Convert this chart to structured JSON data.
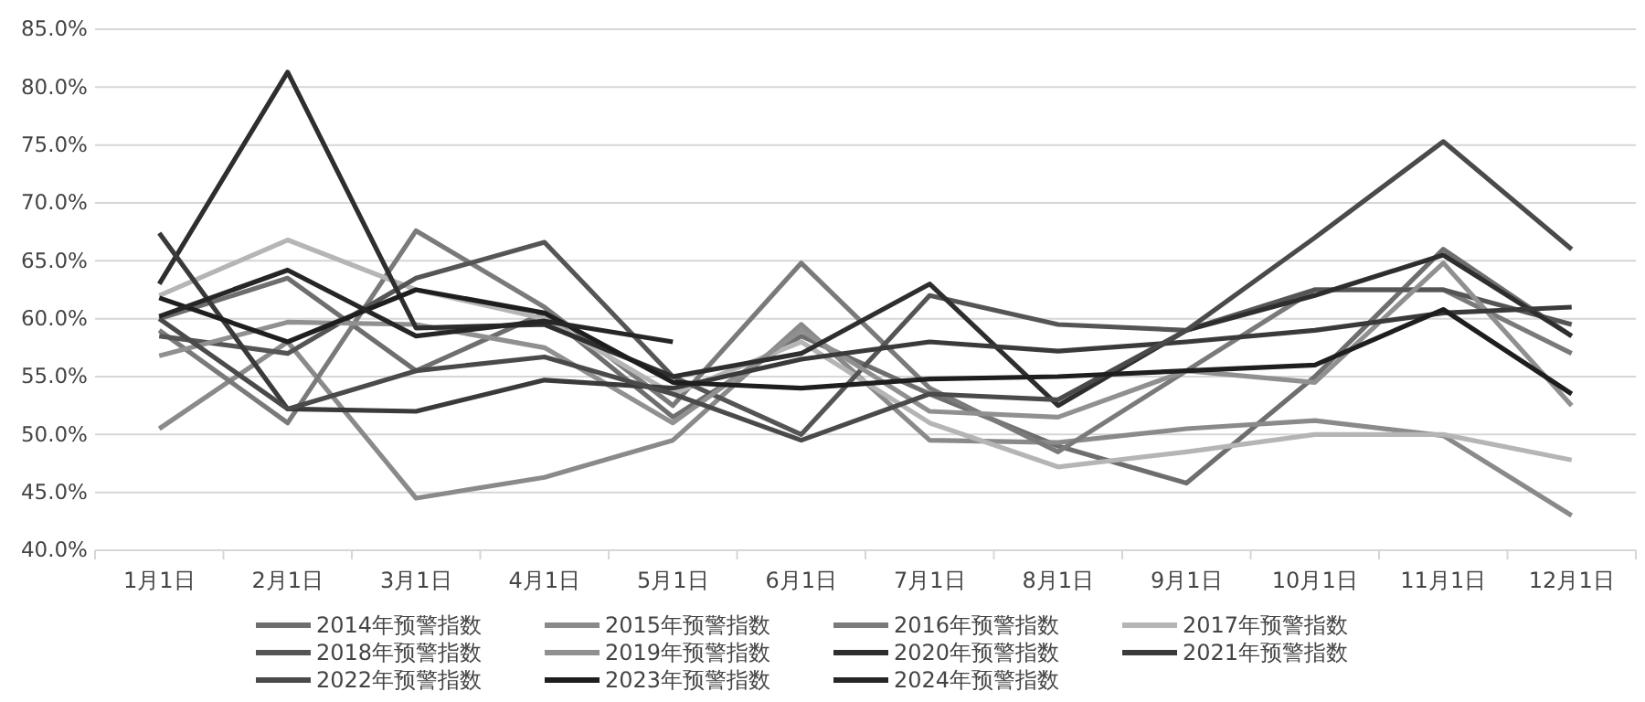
{
  "chart_data": {
    "type": "line",
    "categories": [
      "1月1日",
      "2月1日",
      "3月1日",
      "4月1日",
      "5月1日",
      "6月1日",
      "7月1日",
      "8月1日",
      "9月1日",
      "10月1日",
      "11月1日",
      "12月1日"
    ],
    "ylim": [
      40,
      85
    ],
    "yticks": [
      {
        "value": 40,
        "label": "40.0%"
      },
      {
        "value": 45,
        "label": "45.0%"
      },
      {
        "value": 50,
        "label": "50.0%"
      },
      {
        "value": 55,
        "label": "55.0%"
      },
      {
        "value": 60,
        "label": "60.0%"
      },
      {
        "value": 65,
        "label": "65.0%"
      },
      {
        "value": 70,
        "label": "70.0%"
      },
      {
        "value": 75,
        "label": "75.0%"
      },
      {
        "value": 80,
        "label": "80.0%"
      },
      {
        "value": 85,
        "label": "85.0%"
      }
    ],
    "grid": "y",
    "legend": "bottom",
    "marker": "none",
    "line_style": "solid",
    "series": [
      {
        "name": "2014年预警指数",
        "color": "#6e6e6e",
        "values": [
          60.0,
          63.5,
          55.5,
          60.5,
          51.5,
          58.5,
          53.5,
          49.0,
          45.8,
          55.0,
          66.0,
          58.5
        ]
      },
      {
        "name": "2015年预警指数",
        "color": "#8a8a8a",
        "values": [
          50.5,
          58.0,
          44.5,
          46.3,
          49.5,
          59.5,
          49.5,
          49.3,
          50.5,
          51.2,
          49.9,
          43.0
        ]
      },
      {
        "name": "2016年预警指数",
        "color": "#7a7a7a",
        "values": [
          59.0,
          51.0,
          67.6,
          61.0,
          52.5,
          64.8,
          54.0,
          48.5,
          55.5,
          62.5,
          62.5,
          57.0
        ]
      },
      {
        "name": "2017年预警指数",
        "color": "#b5b5b5",
        "values": [
          62.0,
          66.8,
          62.5,
          60.0,
          53.5,
          58.0,
          51.0,
          47.2,
          48.5,
          50.0,
          50.0,
          47.8
        ]
      },
      {
        "name": "2018年预警指数",
        "color": "#555555",
        "values": [
          58.5,
          57.0,
          63.5,
          66.6,
          55.0,
          50.0,
          62.0,
          59.5,
          59.0,
          62.5,
          62.5,
          59.5
        ]
      },
      {
        "name": "2019年预警指数",
        "color": "#909090",
        "values": [
          56.8,
          59.7,
          59.5,
          57.5,
          51.0,
          59.0,
          52.0,
          51.5,
          55.5,
          54.5,
          64.8,
          52.5
        ]
      },
      {
        "name": "2020年预警指数",
        "color": "#2e2e2e",
        "values": [
          63.0,
          81.3,
          59.2,
          59.5,
          55.0,
          57.0,
          63.0,
          52.5,
          59.0,
          62.0,
          65.5,
          58.5
        ]
      },
      {
        "name": "2021年预警指数",
        "color": "#3a3a3a",
        "values": [
          67.4,
          52.2,
          52.0,
          54.7,
          54.0,
          56.5,
          58.0,
          57.2,
          58.0,
          59.0,
          60.5,
          61.0
        ]
      },
      {
        "name": "2022年预警指数",
        "color": "#4a4a4a",
        "values": [
          60.0,
          52.2,
          55.5,
          56.7,
          53.5,
          49.5,
          53.5,
          53.0,
          59.0,
          67.0,
          75.3,
          66.0
        ]
      },
      {
        "name": "2023年预警指数",
        "color": "#1e1e1e",
        "values": [
          61.8,
          58.0,
          62.5,
          60.5,
          54.5,
          54.0,
          54.8,
          55.0,
          55.5,
          56.0,
          60.8,
          53.5
        ]
      },
      {
        "name": "2024年预警指数",
        "color": "#262626",
        "values": [
          60.2,
          64.2,
          58.5,
          59.8,
          58.0,
          null,
          null,
          null,
          null,
          null,
          null,
          null
        ]
      }
    ]
  }
}
